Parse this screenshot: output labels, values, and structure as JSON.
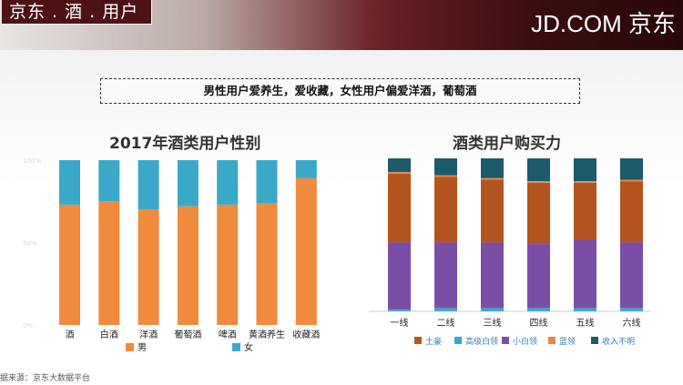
{
  "header": {
    "title": "京东 . 酒 . 用户",
    "brand": "JD.COM 京东"
  },
  "summary": "男性用户爱养生，爱收藏，女性用户偏爱洋酒，葡萄酒",
  "footer": "据来源：京东大数据平台",
  "colors": {
    "male": "#f08a3c",
    "female": "#3aa9c9",
    "tuhao": "#b4541e",
    "gaoji_bailing": "#3aa9c9",
    "xiao_bailing": "#7a4ea6",
    "lanling": "#e58a4a",
    "shouru_buming": "#1c5a6e"
  },
  "chart_data": [
    {
      "type": "bar",
      "stacked": true,
      "title": "2017年酒类用户性别",
      "categories": [
        "酒",
        "白酒",
        "洋酒",
        "葡萄酒",
        "啤酒",
        "黄酒养生",
        "收藏酒"
      ],
      "series": [
        {
          "name": "男",
          "values": [
            73,
            75,
            70,
            72,
            73,
            74,
            89
          ]
        },
        {
          "name": "女",
          "values": [
            27,
            25,
            30,
            28,
            27,
            26,
            11
          ]
        }
      ],
      "ylim": [
        0,
        100
      ],
      "y_ticks": [
        "0%",
        "50%",
        "100%"
      ],
      "legend_position": "bottom"
    },
    {
      "type": "bar",
      "stacked": true,
      "title": "酒类用户购买力",
      "categories": [
        "一线",
        "二线",
        "三线",
        "四线",
        "五线",
        "六线"
      ],
      "series": [
        {
          "name": "收入不明",
          "values": [
            9,
            11,
            13,
            15,
            15,
            14
          ]
        },
        {
          "name": "蓝领",
          "values": [
            1,
            1,
            1,
            1,
            1,
            1
          ]
        },
        {
          "name": "土豪",
          "values": [
            45,
            43,
            41,
            40,
            37,
            40
          ]
        },
        {
          "name": "小白领",
          "values": [
            44,
            43,
            43,
            42,
            45,
            43
          ]
        },
        {
          "name": "高级白领",
          "values": [
            1,
            2,
            2,
            2,
            2,
            2
          ]
        }
      ],
      "ylim": [
        0,
        100
      ],
      "legend": [
        "土豪",
        "高级白领",
        "小白领",
        "蓝领",
        "收入不明"
      ],
      "legend_position": "bottom"
    }
  ]
}
